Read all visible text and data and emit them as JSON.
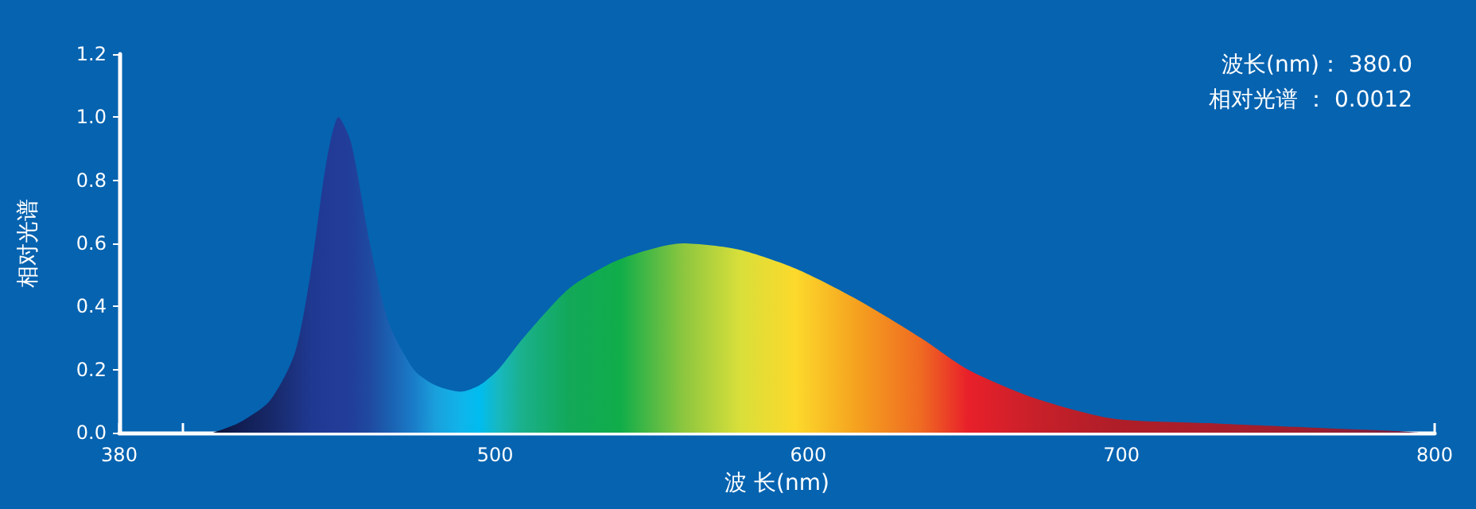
{
  "chart_data": {
    "type": "area",
    "xlabel": "波 长(nm)",
    "ylabel": "相对光谱",
    "annotations": [
      "波长(nm)： 380.0",
      "相对光谱 ： 0.0012"
    ],
    "xlim": [
      380,
      800
    ],
    "xticks": [
      380,
      {
        "value": 400,
        "label": null
      },
      500,
      600,
      700,
      800
    ],
    "ylim": [
      0,
      1.2
    ],
    "yticks": [
      {
        "value": 0,
        "label": "0.0"
      },
      0.2,
      0.4,
      0.6,
      0.8,
      {
        "value": 1,
        "label": "1.0"
      },
      1.2
    ],
    "grid": false,
    "marker": "none",
    "series": [
      {
        "x": [
          410,
          418,
          428,
          436,
          441,
          446,
          450,
          454,
          460,
          466,
          474,
          481,
          489,
          495,
          501,
          509,
          524,
          540,
          560,
          578,
          596,
          616,
          636,
          651,
          672,
          697,
          728,
          763,
          788,
          795
        ],
        "values": [
          0,
          0.03,
          0.1,
          0.25,
          0.5,
          0.85,
          1.0,
          0.92,
          0.6,
          0.35,
          0.2,
          0.15,
          0.13,
          0.15,
          0.2,
          0.3,
          0.46,
          0.55,
          0.6,
          0.58,
          0.52,
          0.42,
          0.3,
          0.2,
          0.11,
          0.045,
          0.03,
          0.015,
          0.005,
          0
        ],
        "colors": [
          "#0a1338",
          "#111d52",
          "#172868",
          "#1c3280",
          "#1f3890",
          "#213a96",
          "#223c98",
          "#213e9a",
          "#1f4aa0",
          "#1b5fb0",
          "#1a7cc8",
          "#1aa0dc",
          "#10b4ea",
          "#00bcef",
          "#18b8c0",
          "#1ab08a",
          "#12a858",
          "#10ad4a",
          "#8cc63f",
          "#d8df3a",
          "#fcd92b",
          "#f5a01f",
          "#ef6a22",
          "#e8202a",
          "#c8202a",
          "#b01e28",
          "#a81e2a",
          "#9a1e30",
          "#7a2040",
          "#5a2a60"
        ]
      }
    ]
  }
}
